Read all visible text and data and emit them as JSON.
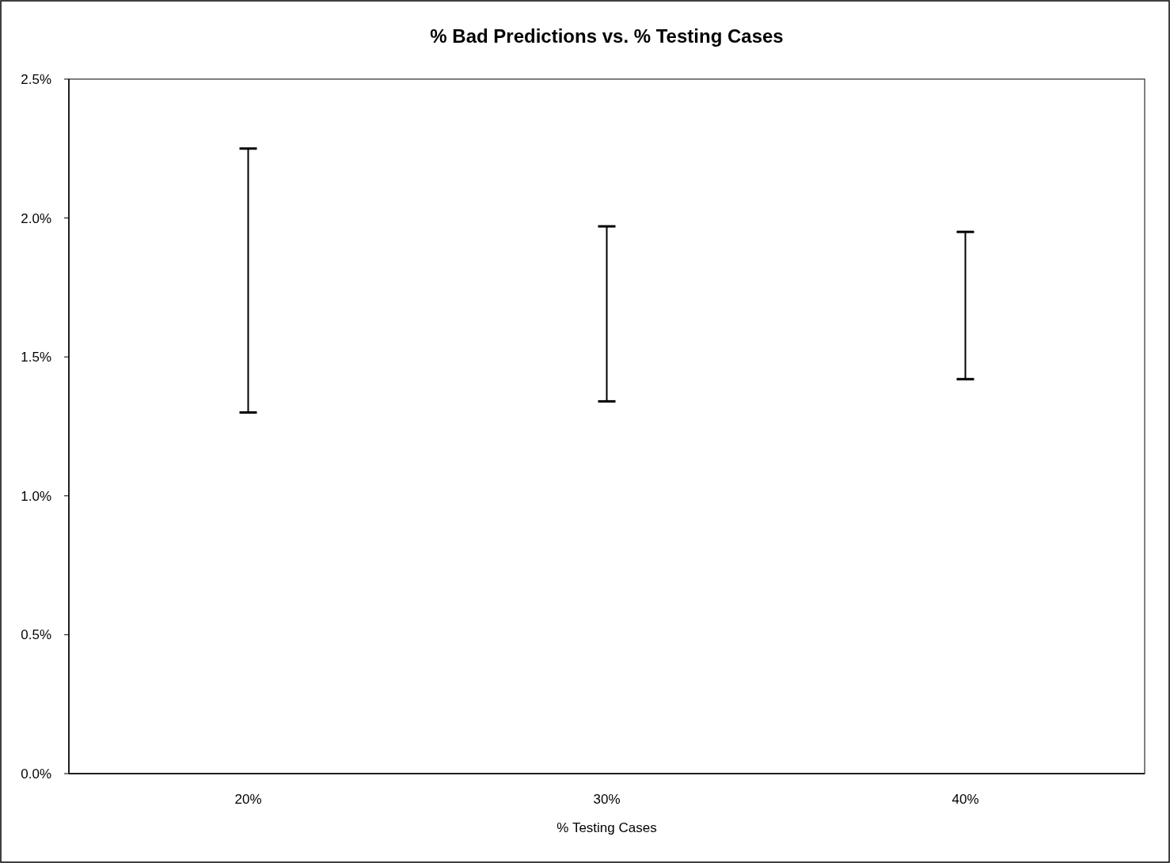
{
  "chart_data": {
    "type": "bar",
    "title": "% Bad Predictions vs. % Testing Cases",
    "xlabel": "% Testing Cases",
    "categories": [
      "20%",
      "30%",
      "40%"
    ],
    "series": [
      {
        "color": "#000000",
        "base": [
          1.3,
          1.34,
          1.42
        ],
        "values": [
          0.95,
          0.63,
          0.53
        ]
      }
    ],
    "grid": false,
    "ylim": [
      0,
      2.5
    ],
    "yticks": [
      {
        "value": 0,
        "label": "0.0%"
      },
      {
        "value": 0.5,
        "label": "0.5%"
      },
      {
        "value": 1,
        "label": "1.0%"
      },
      {
        "value": 1.5,
        "label": "1.5%"
      },
      {
        "value": 2,
        "label": "2.0%"
      },
      {
        "value": 2.5,
        "label": "2.5%"
      }
    ]
  }
}
